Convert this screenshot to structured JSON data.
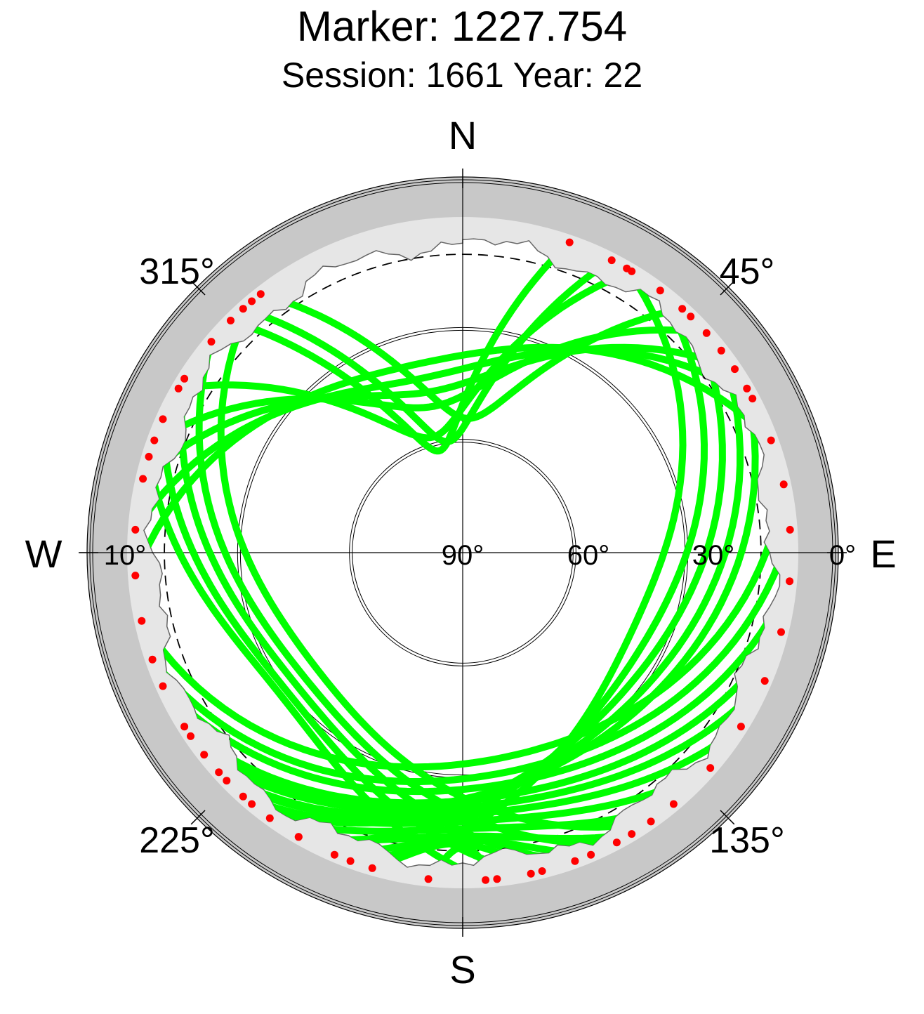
{
  "title": "Marker: 1227.754",
  "subtitle": "Session: 1661 Year: 22",
  "compass": {
    "north": "N",
    "south": "S",
    "east": "E",
    "west": "W"
  },
  "azimuth_labels": [
    "45°",
    "135°",
    "225°",
    "315°"
  ],
  "elevation_labels": [
    "0°",
    "10°",
    "30°",
    "60°",
    "90°"
  ],
  "colors": {
    "track": "#00ff00",
    "endpoint": "#ff0000",
    "mask_band": "#c8c8c8",
    "horizon_area": "#e6e6e6",
    "background": "#ffffff"
  },
  "chart_data": {
    "type": "scatter",
    "projection": "polar skyplot (azimuth clockwise from N, radius = 90° - elevation)",
    "title": "Marker: 1227.754",
    "subtitle": "Session: 1661 Year: 22",
    "elevation_range": [
      0,
      90
    ],
    "elevation_ticks": [
      0,
      10,
      30,
      60,
      90
    ],
    "elevation_cutoff_deg": 10,
    "azimuth_ticks": [
      0,
      45,
      90,
      135,
      180,
      225,
      270,
      315
    ],
    "tracks": [
      {
        "az_start": 19,
        "az_end": 315,
        "min_el": 62
      },
      {
        "az_start": 27,
        "az_end": 318,
        "min_el": 60
      },
      {
        "az_start": 31,
        "az_end": 300,
        "min_el": 58
      },
      {
        "az_start": 42,
        "az_end": 322,
        "min_el": 54
      },
      {
        "az_start": 48,
        "az_end": 290,
        "min_el": 50
      },
      {
        "az_start": 56,
        "az_end": 283,
        "min_el": 46
      },
      {
        "az_start": 62,
        "az_end": 274,
        "min_el": 42
      },
      {
        "az_start": 70,
        "az_end": 266,
        "min_el": 38
      },
      {
        "az_start": 78,
        "az_end": 258,
        "min_el": 34
      },
      {
        "az_start": 86,
        "az_end": 251,
        "min_el": 30
      },
      {
        "az_start": 95,
        "az_end": 246,
        "min_el": 27
      },
      {
        "az_start": 104,
        "az_end": 238,
        "min_el": 24
      },
      {
        "az_start": 113,
        "az_end": 232,
        "min_el": 22
      },
      {
        "az_start": 122,
        "az_end": 226,
        "min_el": 20
      },
      {
        "az_start": 131,
        "az_end": 222,
        "min_el": 18
      },
      {
        "az_start": 140,
        "az_end": 216,
        "min_el": 16
      },
      {
        "az_start": 149,
        "az_end": 210,
        "min_el": 14
      },
      {
        "az_start": 157,
        "az_end": 203,
        "min_el": 13
      },
      {
        "az_start": 166,
        "az_end": 196,
        "min_el": 12
      },
      {
        "az_start": 174,
        "az_end": 186,
        "min_el": 11
      },
      {
        "az_start": 30,
        "az_end": 200,
        "min_el": 40
      },
      {
        "az_start": 37,
        "az_end": 210,
        "min_el": 36
      },
      {
        "az_start": 44,
        "az_end": 220,
        "min_el": 33
      },
      {
        "az_start": 52,
        "az_end": 228,
        "min_el": 30
      },
      {
        "az_start": 60,
        "az_end": 236,
        "min_el": 28
      },
      {
        "az_start": 145,
        "az_end": 320,
        "min_el": 40
      },
      {
        "az_start": 152,
        "az_end": 310,
        "min_el": 36
      },
      {
        "az_start": 160,
        "az_end": 302,
        "min_el": 33
      },
      {
        "az_start": 168,
        "az_end": 294,
        "min_el": 30
      },
      {
        "az_start": 176,
        "az_end": 287,
        "min_el": 28
      }
    ]
  }
}
